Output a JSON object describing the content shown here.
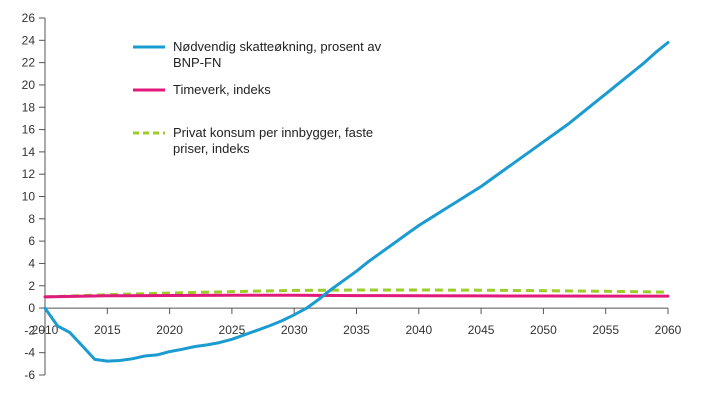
{
  "chart_data": {
    "type": "line",
    "title": "",
    "xlabel": "",
    "ylabel": "",
    "xlim": [
      2010,
      2060
    ],
    "ylim": [
      -6,
      26
    ],
    "x_ticks": [
      2010,
      2015,
      2020,
      2025,
      2030,
      2035,
      2040,
      2045,
      2050,
      2055,
      2060
    ],
    "y_ticks": [
      -6,
      -4,
      -2,
      0,
      2,
      4,
      6,
      8,
      10,
      12,
      14,
      16,
      18,
      20,
      22,
      24,
      26
    ],
    "grid": false,
    "legend_position": "top-left",
    "series": [
      {
        "name": "Nødvendig skatteøkning, prosent av BNP-FN",
        "legend_lines": [
          "Nødvendig skatteøkning, prosent av",
          "BNP-FN"
        ],
        "color": "#1a9bd1",
        "style": "solid",
        "points": [
          [
            2010,
            0.0
          ],
          [
            2011,
            -1.6
          ],
          [
            2012,
            -2.2
          ],
          [
            2013,
            -3.4
          ],
          [
            2014,
            -4.6
          ],
          [
            2015,
            -4.75
          ],
          [
            2016,
            -4.7
          ],
          [
            2017,
            -4.55
          ],
          [
            2018,
            -4.3
          ],
          [
            2019,
            -4.2
          ],
          [
            2020,
            -3.9
          ],
          [
            2021,
            -3.7
          ],
          [
            2022,
            -3.45
          ],
          [
            2023,
            -3.3
          ],
          [
            2024,
            -3.1
          ],
          [
            2025,
            -2.8
          ],
          [
            2026,
            -2.4
          ],
          [
            2027,
            -2.0
          ],
          [
            2028,
            -1.6
          ],
          [
            2029,
            -1.15
          ],
          [
            2030,
            -0.6
          ],
          [
            2031,
            0.0
          ],
          [
            2032,
            0.8
          ],
          [
            2033,
            1.7
          ],
          [
            2034,
            2.5
          ],
          [
            2035,
            3.3
          ],
          [
            2036,
            4.2
          ],
          [
            2037,
            5.0
          ],
          [
            2038,
            5.8
          ],
          [
            2039,
            6.6
          ],
          [
            2040,
            7.4
          ],
          [
            2041,
            8.1
          ],
          [
            2042,
            8.8
          ],
          [
            2043,
            9.5
          ],
          [
            2044,
            10.2
          ],
          [
            2045,
            10.9
          ],
          [
            2046,
            11.7
          ],
          [
            2047,
            12.5
          ],
          [
            2048,
            13.3
          ],
          [
            2049,
            14.1
          ],
          [
            2050,
            14.9
          ],
          [
            2051,
            15.7
          ],
          [
            2052,
            16.5
          ],
          [
            2053,
            17.4
          ],
          [
            2054,
            18.3
          ],
          [
            2055,
            19.2
          ],
          [
            2056,
            20.1
          ],
          [
            2057,
            21.0
          ],
          [
            2058,
            21.9
          ],
          [
            2059,
            22.9
          ],
          [
            2060,
            23.8
          ]
        ]
      },
      {
        "name": "Timeverk, indeks",
        "legend_lines": [
          "Timeverk, indeks"
        ],
        "color": "#e0197d",
        "style": "solid",
        "points": [
          [
            2010,
            1.0
          ],
          [
            2015,
            1.1
          ],
          [
            2020,
            1.13
          ],
          [
            2025,
            1.15
          ],
          [
            2030,
            1.14
          ],
          [
            2035,
            1.12
          ],
          [
            2040,
            1.1
          ],
          [
            2045,
            1.09
          ],
          [
            2050,
            1.08
          ],
          [
            2055,
            1.07
          ],
          [
            2060,
            1.07
          ]
        ]
      },
      {
        "name": "Privat konsum per innbygger, faste priser, indeks",
        "legend_lines": [
          "Privat konsum per innbygger, faste",
          "priser, indeks"
        ],
        "color": "#9ccb2a",
        "style": "dashed",
        "points": [
          [
            2010,
            1.0
          ],
          [
            2015,
            1.2
          ],
          [
            2020,
            1.35
          ],
          [
            2025,
            1.48
          ],
          [
            2030,
            1.58
          ],
          [
            2035,
            1.62
          ],
          [
            2040,
            1.62
          ],
          [
            2045,
            1.6
          ],
          [
            2050,
            1.56
          ],
          [
            2055,
            1.5
          ],
          [
            2060,
            1.43
          ]
        ]
      }
    ]
  }
}
